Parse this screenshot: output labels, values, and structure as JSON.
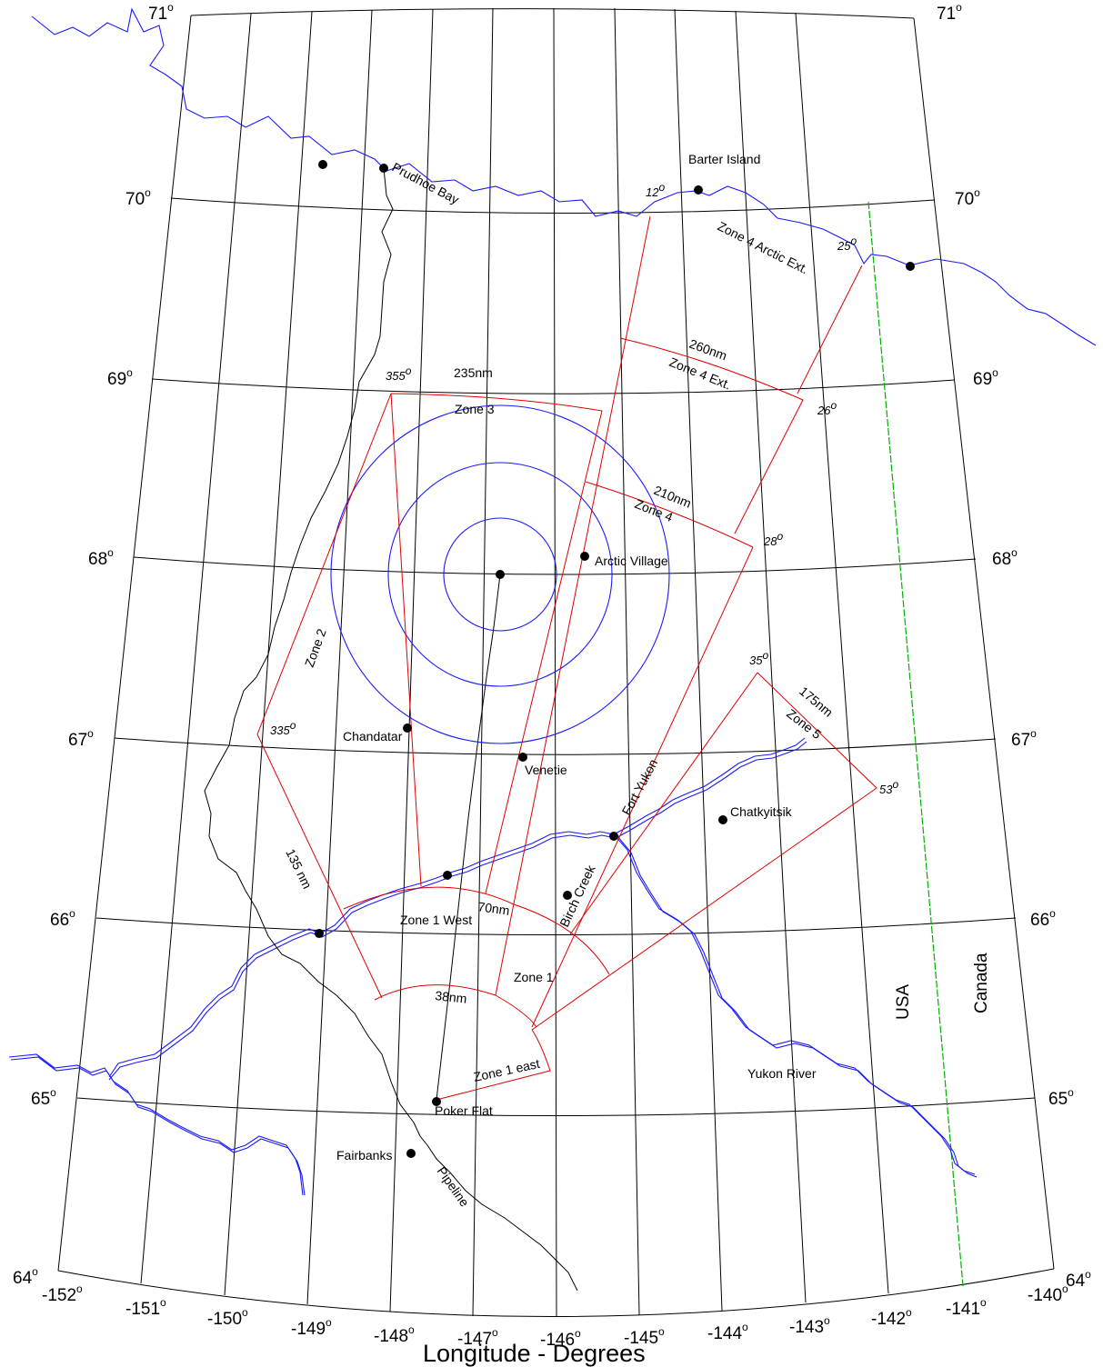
{
  "map": {
    "xaxis_title": "Longitude - Degrees",
    "degree_symbol": "o",
    "longitude_labels": [
      "-152",
      "-151",
      "-150",
      "-149",
      "-148",
      "-147",
      "-146",
      "-145",
      "-144",
      "-143",
      "-142",
      "-141",
      "-140"
    ],
    "latitude_labels": [
      "64",
      "65",
      "66",
      "67",
      "68",
      "69",
      "70",
      "71"
    ],
    "places": {
      "prudhoe_bay": "Prudhoe Bay",
      "barter_island": "Barter Island",
      "arctic_village": "Arctic Village",
      "chandatar": "Chandatar",
      "venetie": "Venetie",
      "fort_yukon": "Fort Yukon",
      "chatkyitsik": "Chatkyitsik",
      "birch_creek": "Birch Creek",
      "poker_flat": "Poker Flat",
      "fairbanks": "Fairbanks",
      "yukon_river": "Yukon River",
      "pipeline": "Pipeline"
    },
    "countries": {
      "usa": "USA",
      "canada": "Canada"
    },
    "zones": {
      "zone1": "Zone 1",
      "zone1_west": "Zone 1 West",
      "zone1_east": "Zone 1 east",
      "zone2": "Zone 2",
      "zone3": "Zone 3",
      "zone4": "Zone 4",
      "zone4_ext": "Zone 4 Ext.",
      "zone4_arctic_ext": "Zone 4 Arctic Ext.",
      "zone5": "Zone 5"
    },
    "ranges": {
      "r38": "38nm",
      "r70": "70nm",
      "r135": "135 nm",
      "r175": "175nm",
      "r210": "210nm",
      "r235": "235nm",
      "r260": "260nm"
    },
    "bearings": {
      "b12": "12",
      "b25": "25",
      "b26": "26",
      "b28": "28",
      "b35": "35",
      "b53": "53",
      "b335": "335",
      "b355": "355"
    },
    "colors": {
      "zone_lines": "#e00000",
      "water_and_rings": "#1a1aff",
      "international_border": "#00b000",
      "grid": "#000000"
    }
  }
}
